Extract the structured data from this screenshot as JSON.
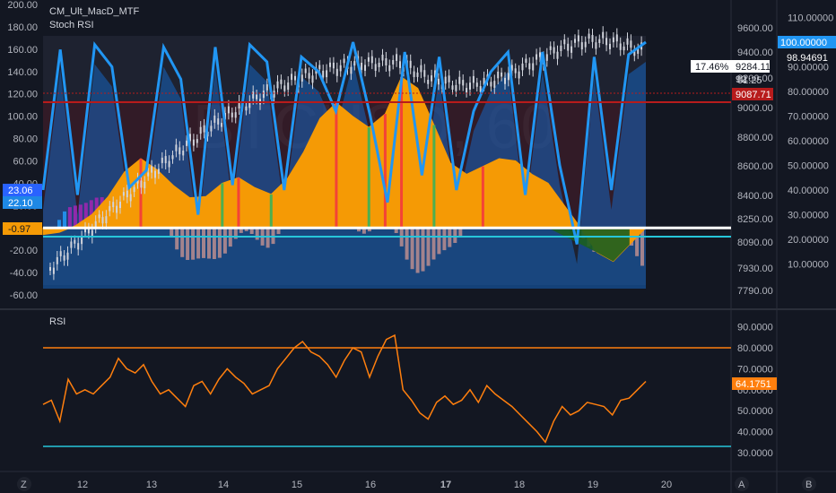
{
  "chart_data": [
    {
      "type": "line",
      "panel": "main",
      "legend": [
        "CM_Ult_MacD_MTF",
        "Stoch RSI"
      ],
      "left_axis": {
        "ticks": [
          200.0,
          180.0,
          160.0,
          140.0,
          120.0,
          100.0,
          80.0,
          60.0,
          40.0,
          20.0,
          0.0,
          -20.0,
          -40.0,
          -60.0
        ]
      },
      "price_axis": {
        "ticks": [
          9600.0,
          9400.0,
          9200.0,
          9000.0,
          8800.0,
          8600.0,
          8400.0,
          8250.0,
          8090.0,
          7930.0,
          7790.0
        ]
      },
      "stoch_axis": {
        "ticks": [
          110.0,
          100.0,
          90.0,
          80.0,
          70.0,
          60.0,
          50.0,
          40.0,
          30.0,
          20.0,
          10.0
        ]
      },
      "tags": {
        "macd_a": "23.06",
        "macd_b": "22.10",
        "macd_zero": "-0.97",
        "stoch_k": "100.00000",
        "stoch_d": "98.94691",
        "price_change": "17.46%",
        "price": "9284.11",
        "price_line2": "92",
        "countdown": "01:25",
        "prev_close": "9087.71"
      },
      "colors": {
        "macd_area": "#f59a05",
        "stoch_k": "#2196f3",
        "stoch_d": "#1565c0",
        "cross_up": "#4caf50",
        "cross_down": "#f44336",
        "hist_pos_strong": "#9c27b0",
        "hist_pos": "#2196f3",
        "hist_neg": "#b2898f",
        "zero_line": "#ffffff",
        "level_high": "#b71c1c",
        "level_low": "#26c6da"
      },
      "macd_area_values": [
        -6,
        -4,
        2,
        12,
        28,
        50,
        62,
        52,
        38,
        27,
        28,
        40,
        45,
        36,
        30,
        44,
        68,
        98,
        112,
        100,
        90,
        102,
        135,
        125,
        92,
        58,
        48,
        55,
        62,
        60,
        48,
        40,
        20,
        0,
        -22,
        -30,
        -15,
        0
      ],
      "stoch_k_values": [
        40,
        97,
        38,
        99,
        90,
        41,
        48,
        98,
        85,
        30,
        98,
        42,
        99,
        92,
        40,
        94,
        88,
        72,
        100,
        70,
        35,
        96,
        46,
        94,
        40,
        72,
        88,
        96,
        38,
        96,
        50,
        18,
        94,
        40,
        95,
        100
      ]
    },
    {
      "type": "line",
      "panel": "rsi",
      "legend": [
        "RSI"
      ],
      "y_ticks": [
        90.0,
        80.0,
        70.0,
        60.0,
        50.0,
        40.0,
        30.0
      ],
      "ylim": [
        27,
        92
      ],
      "upper_band": 80,
      "lower_band": 33,
      "last_value_label": "64.1751",
      "color": "#ff7f0e",
      "values": [
        53,
        55,
        45,
        65,
        58,
        60,
        58,
        62,
        66,
        75,
        70,
        68,
        72,
        64,
        58,
        60,
        56,
        52,
        62,
        64,
        58,
        65,
        70,
        66,
        63,
        58,
        60,
        62,
        70,
        75,
        80,
        83,
        78,
        76,
        72,
        66,
        74,
        80,
        78,
        66,
        76,
        84,
        86,
        60,
        55,
        49,
        46,
        54,
        57,
        53,
        55,
        60,
        54,
        62,
        58,
        55,
        52,
        48,
        44,
        40,
        35,
        45,
        52,
        48,
        50,
        54,
        53,
        52,
        48,
        55,
        56,
        60,
        64
      ]
    }
  ],
  "x_axis": {
    "ticks": [
      "12",
      "13",
      "14",
      "15",
      "16",
      "17",
      "18",
      "19",
      "20"
    ]
  },
  "footer": {
    "left_letter": "Z",
    "center_letter": "A",
    "right_letter": "B"
  }
}
